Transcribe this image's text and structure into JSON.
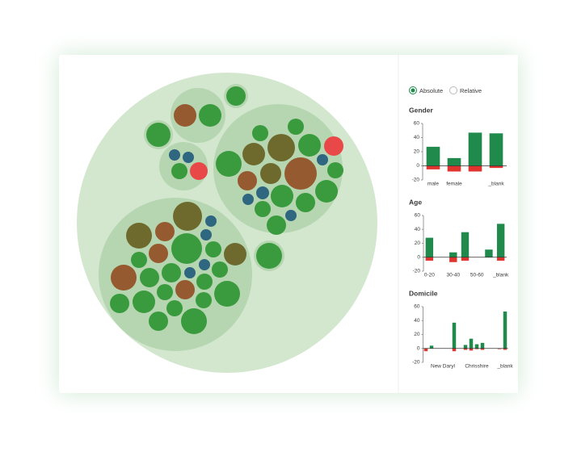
{
  "controls": {
    "absolute": "Absolute",
    "relative": "Relative"
  },
  "chart_data": [
    {
      "type": "bar",
      "title": "Gender",
      "categories": [
        "male",
        "female",
        null,
        "_blank"
      ],
      "series": [
        {
          "color": "#1f8a4c",
          "values": [
            27,
            11,
            47,
            46
          ]
        },
        {
          "color": "#e0352f",
          "values": [
            -5,
            -8,
            -8,
            -3
          ]
        }
      ],
      "ylim": [
        -20,
        60
      ],
      "yticks": [
        -20,
        0,
        20,
        40,
        60
      ]
    },
    {
      "type": "bar",
      "title": "Age",
      "categories": [
        "0-20",
        null,
        "30-40",
        null,
        "50-60",
        null,
        "_blank"
      ],
      "series": [
        {
          "color": "#1f8a4c",
          "values": [
            28,
            0,
            7,
            36,
            0,
            11,
            48
          ]
        },
        {
          "color": "#e0352f",
          "values": [
            -5,
            0,
            -7,
            -5,
            0,
            0,
            -5
          ]
        }
      ],
      "ylim": [
        -20,
        60
      ],
      "yticks": [
        -20,
        0,
        20,
        40,
        60
      ]
    },
    {
      "type": "bar",
      "title": "Domicile",
      "categories": [
        null,
        null,
        null,
        "New Daryl",
        null,
        null,
        null,
        null,
        null,
        "Chrisshire",
        null,
        null,
        null,
        null,
        "_blank"
      ],
      "series": [
        {
          "color": "#1f8a4c",
          "values": [
            0,
            4,
            0,
            0,
            0,
            37,
            0,
            5,
            14,
            6,
            8,
            0,
            0,
            0,
            53
          ]
        },
        {
          "color": "#e0352f",
          "values": [
            -4,
            0,
            0,
            0,
            0,
            -4,
            0,
            -2,
            -3,
            -1,
            -2,
            0,
            0,
            -1,
            -2
          ]
        }
      ],
      "ylim": [
        -20,
        60
      ],
      "yticks": [
        -20,
        0,
        20,
        40,
        60
      ]
    }
  ]
}
